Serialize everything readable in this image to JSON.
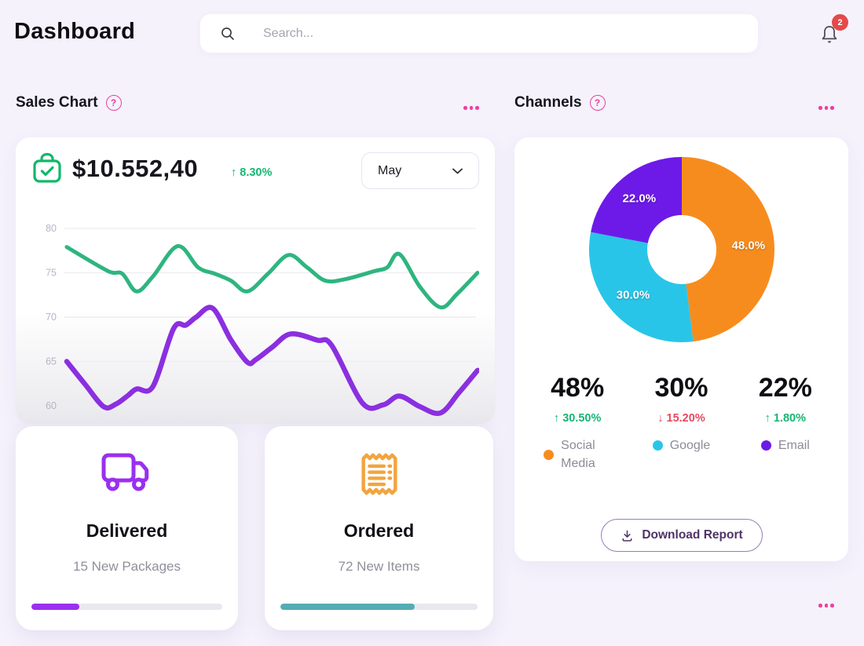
{
  "theme": {
    "page_bg": "#f5f2fc",
    "accent_pink": "#ee3f9e",
    "green_text": "#17b573",
    "red_text": "#e9485e",
    "badge_red": "#e34a49",
    "help_glyph": "?"
  },
  "header": {
    "title": "Dashboard",
    "search_placeholder": "Search...",
    "notification_count": "2"
  },
  "sales": {
    "title": "Sales Chart",
    "amount": "$10.552,40",
    "delta": "↑ 8.30%",
    "month": "May",
    "cards": [
      {
        "title": "Delivered",
        "subtitle": "15 New Packages",
        "progress_pct": 25,
        "color": "#9b2ff0"
      },
      {
        "title": "Ordered",
        "subtitle": "72 New Items",
        "progress_pct": 68,
        "color": "#55acb4"
      }
    ]
  },
  "channels": {
    "title": "Channels",
    "stats": [
      {
        "value": "48%",
        "delta": "↑ 30.50%",
        "delta_color": "#17b573",
        "label": "Social Media",
        "color": "#f78c1e"
      },
      {
        "value": "30%",
        "delta": "↓ 15.20%",
        "delta_color": "#e9485e",
        "label": "Google",
        "color": "#29c5e8"
      },
      {
        "value": "22%",
        "delta": "↑ 1.80%",
        "delta_color": "#17b573",
        "label": "Email",
        "color": "#6d1ae8"
      }
    ],
    "download_label": "Download Report"
  },
  "chart_data": [
    {
      "type": "line",
      "title": "Sales Chart",
      "period": "May",
      "xlabel": "",
      "ylabel": "",
      "ylim": [
        58,
        81
      ],
      "yticks": [
        60,
        65,
        70,
        75,
        80
      ],
      "grid": true,
      "series": [
        {
          "name": "sales-upper",
          "color": "#2eb57f",
          "points": [
            [
              0,
              77.9
            ],
            [
              0.1,
              75.2
            ],
            [
              0.135,
              74.9
            ],
            [
              0.17,
              72.9
            ],
            [
              0.21,
              74.6
            ],
            [
              0.27,
              78.0
            ],
            [
              0.32,
              75.6
            ],
            [
              0.36,
              74.9
            ],
            [
              0.4,
              74.1
            ],
            [
              0.44,
              72.9
            ],
            [
              0.49,
              74.9
            ],
            [
              0.54,
              77.0
            ],
            [
              0.585,
              75.6
            ],
            [
              0.63,
              74.1
            ],
            [
              0.68,
              74.3
            ],
            [
              0.75,
              75.2
            ],
            [
              0.78,
              75.6
            ],
            [
              0.81,
              77.1
            ],
            [
              0.86,
              73.4
            ],
            [
              0.91,
              71.1
            ],
            [
              0.95,
              72.6
            ],
            [
              1,
              75.0
            ]
          ]
        },
        {
          "name": "sales-lower",
          "color": "#8b2fe0",
          "points": [
            [
              0,
              65.0
            ],
            [
              0.045,
              62.4
            ],
            [
              0.09,
              59.9
            ],
            [
              0.12,
              60.2
            ],
            [
              0.15,
              61.2
            ],
            [
              0.17,
              61.9
            ],
            [
              0.21,
              62.2
            ],
            [
              0.26,
              68.7
            ],
            [
              0.29,
              69.1
            ],
            [
              0.315,
              70.0
            ],
            [
              0.355,
              71.0
            ],
            [
              0.4,
              67.4
            ],
            [
              0.44,
              64.9
            ],
            [
              0.46,
              65.2
            ],
            [
              0.5,
              66.6
            ],
            [
              0.545,
              68.1
            ],
            [
              0.61,
              67.4
            ],
            [
              0.645,
              66.8
            ],
            [
              0.72,
              60.3
            ],
            [
              0.77,
              60.1
            ],
            [
              0.81,
              61.1
            ],
            [
              0.86,
              59.9
            ],
            [
              0.91,
              59.2
            ],
            [
              0.955,
              61.5
            ],
            [
              1,
              64.0
            ]
          ]
        }
      ]
    },
    {
      "type": "pie",
      "subtype": "donut",
      "title": "Channels",
      "start_angle_deg": 0,
      "direction": "clockwise",
      "slices": [
        {
          "label": "Social Media",
          "value": 48.0,
          "display": "48.0%",
          "color": "#f78c1e"
        },
        {
          "label": "Google",
          "value": 30.0,
          "display": "30.0%",
          "color": "#29c5e8"
        },
        {
          "label": "Email",
          "value": 22.0,
          "display": "22.0%",
          "color": "#6d1ae8"
        }
      ]
    }
  ]
}
